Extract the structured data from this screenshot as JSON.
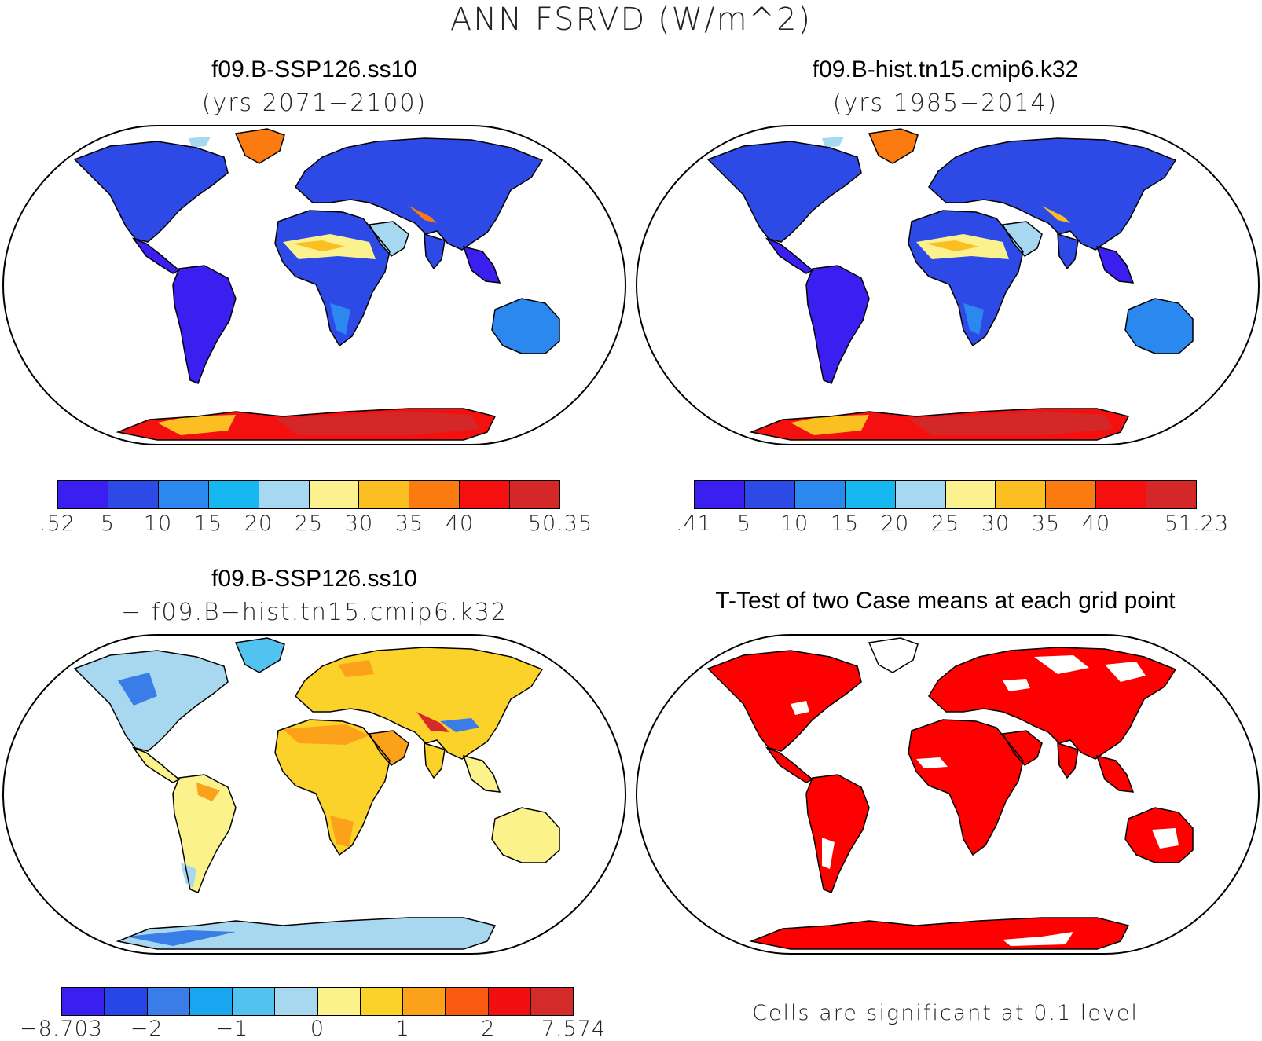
{
  "title": "ANN FSRVD (W/m^2)",
  "panels": [
    {
      "id": "ssp",
      "title": "f09.B-SSP126.ss10",
      "subtitle": "(yrs 2071−2100)"
    },
    {
      "id": "hist",
      "title": "f09.B-hist.tn15.cmip6.k32",
      "subtitle": "(yrs 1985−2014)"
    },
    {
      "id": "diff",
      "title": "f09.B-SSP126.ss10",
      "subtitle": "− f09.B−hist.tn15.cmip6.k32"
    },
    {
      "id": "ttest",
      "title": "T-Test of two Case means at each grid point",
      "subtitle": ""
    }
  ],
  "colorbars": {
    "ssp": {
      "colors": [
        "#3b1ef0",
        "#2e4ae6",
        "#2a88ef",
        "#17b8f2",
        "#a6d8f2",
        "#fbf18e",
        "#fbbf22",
        "#fb7b10",
        "#f51010",
        "#d42828"
      ],
      "labels": [
        ".52",
        "5",
        "10",
        "15",
        "20",
        "25",
        "30",
        "35",
        "40",
        "50.35"
      ]
    },
    "hist": {
      "colors": [
        "#3b1ef0",
        "#2e4ae6",
        "#2a88ef",
        "#17b8f2",
        "#a6d8f2",
        "#fbf18e",
        "#fbbf22",
        "#fb7b10",
        "#f51010",
        "#d42828"
      ],
      "labels": [
        ".41",
        "5",
        "10",
        "15",
        "20",
        "25",
        "30",
        "35",
        "40",
        "51.23"
      ]
    },
    "diff": {
      "colors": [
        "#3b1ef0",
        "#2646e8",
        "#3a7ce8",
        "#19a6f0",
        "#52c3f0",
        "#a8d8f0",
        "#fbf28c",
        "#fbd229",
        "#fba21a",
        "#fb5a12",
        "#f00e0e",
        "#d42a2a"
      ],
      "labels": [
        "−8.703",
        "−2",
        "−1",
        "0",
        "1",
        "2",
        "7.574"
      ]
    }
  },
  "ttest_note": "Cells are significant at 0.1 level",
  "map_colors": {
    "ocean": "#ffffff",
    "coast": "#000000",
    "significant": "#ff0000"
  }
}
